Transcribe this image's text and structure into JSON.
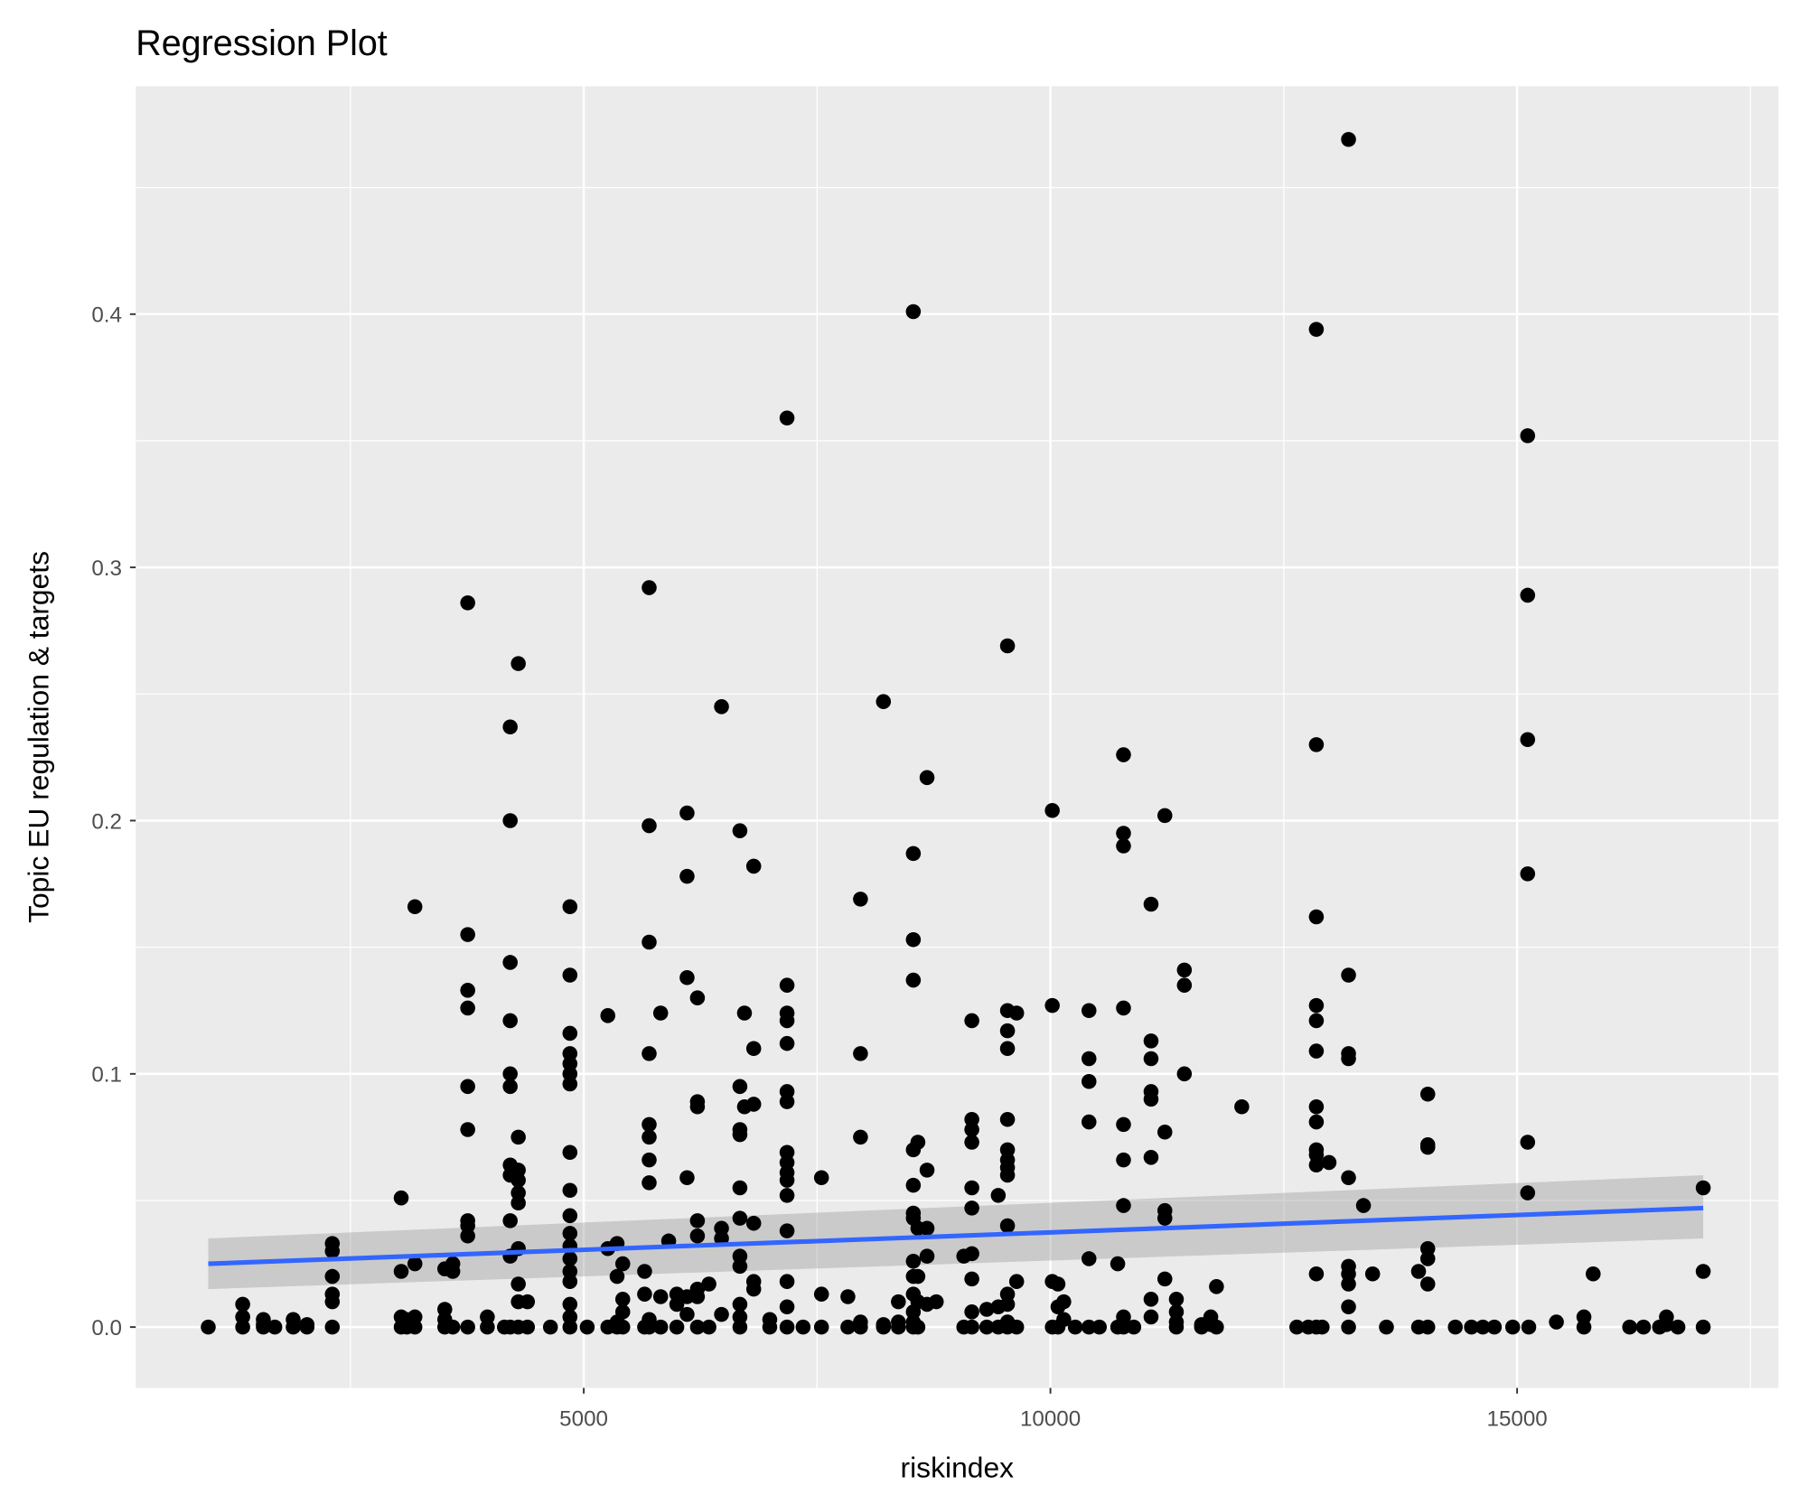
{
  "chart_data": {
    "type": "scatter",
    "title": "Regression Plot",
    "xlabel": "riskindex",
    "ylabel": "Topic EU regulation & targets",
    "xlim": [
      200,
      17800
    ],
    "ylim": [
      -0.024,
      0.49
    ],
    "x_ticks": [
      5000,
      10000,
      15000
    ],
    "x_tick_labels": [
      "5000",
      "10000",
      "15000"
    ],
    "y_ticks": [
      0.0,
      0.1,
      0.2,
      0.3,
      0.4
    ],
    "y_tick_labels": [
      "0.0",
      "0.1",
      "0.2",
      "0.3",
      "0.4"
    ],
    "grid": true,
    "colors": {
      "panel": "#ebebeb",
      "grid": "#ffffff",
      "points": "#000000",
      "line": "#3366ff",
      "band": "#bebebe"
    },
    "regression": {
      "x": [
        977,
        16994
      ],
      "y": [
        0.025,
        0.047
      ],
      "ci_low": [
        0.015,
        0.035
      ],
      "ci_high": [
        0.035,
        0.06
      ]
    },
    "point_columns": [
      [
        977,
        [
          0
        ]
      ],
      [
        1346,
        [
          0,
          0.004,
          0.009
        ]
      ],
      [
        1567,
        [
          0,
          0.003,
          0.001
        ]
      ],
      [
        1690,
        [
          0
        ]
      ],
      [
        1887,
        [
          0,
          0.003
        ]
      ],
      [
        2035,
        [
          0,
          0.001
        ]
      ],
      [
        2306,
        [
          0,
          0.01,
          0.013,
          0.02,
          0.03,
          0.033
        ]
      ],
      [
        3044,
        [
          0.051,
          0.022,
          0.004,
          0
        ]
      ],
      [
        3105,
        [
          0,
          0.003
        ]
      ],
      [
        3191,
        [
          0.166,
          0.025,
          0.004,
          0
        ]
      ],
      [
        3511,
        [
          0.023,
          0.007,
          0.003,
          0
        ]
      ],
      [
        3597,
        [
          0.022,
          0.025,
          0
        ]
      ],
      [
        3757,
        [
          0.286,
          0.155,
          0.133,
          0.126,
          0.095,
          0.078,
          0.042,
          0.04,
          0.036,
          0
        ]
      ],
      [
        3967,
        [
          0.004,
          0
        ]
      ],
      [
        4150,
        [
          0
        ]
      ],
      [
        4212,
        [
          0.237,
          0.2,
          0.144,
          0.121,
          0.1,
          0.095,
          0.064,
          0.06,
          0.042,
          0.028,
          0
        ]
      ],
      [
        4299,
        [
          0.262,
          0.075,
          0.062,
          0.058,
          0.053,
          0.049,
          0.031,
          0.017,
          0.01,
          0
        ]
      ],
      [
        4397,
        [
          0.01,
          0
        ]
      ],
      [
        4643,
        [
          0
        ]
      ],
      [
        4852,
        [
          0.166,
          0.139,
          0.116,
          0.108,
          0.104,
          0.1,
          0.096,
          0.069,
          0.054,
          0.044,
          0.037,
          0.032,
          0.027,
          0.022,
          0.018,
          0.009,
          0.004,
          0
        ]
      ],
      [
        5037,
        [
          0
        ]
      ],
      [
        5258,
        [
          0.123,
          0.031,
          0
        ]
      ],
      [
        5357,
        [
          0.033,
          0.02,
          0.002,
          0
        ]
      ],
      [
        5418,
        [
          0.025,
          0.011,
          0.006,
          0
        ]
      ],
      [
        5652,
        [
          0.022,
          0.013,
          0
        ]
      ],
      [
        5701,
        [
          0.292,
          0.198,
          0.152,
          0.108,
          0.08,
          0.075,
          0.066,
          0.057,
          0.003,
          0
        ]
      ],
      [
        5824,
        [
          0.124,
          0.012,
          0
        ]
      ],
      [
        5910,
        [
          0.034
        ]
      ],
      [
        5997,
        [
          0.013,
          0.009,
          0
        ]
      ],
      [
        6107,
        [
          0.203,
          0.178,
          0.138,
          0.059,
          0.012,
          0.005
        ]
      ],
      [
        6218,
        [
          0.13,
          0.089,
          0.087,
          0.042,
          0.036,
          0.015,
          0.012,
          0
        ]
      ],
      [
        6341,
        [
          0.017,
          0
        ]
      ],
      [
        6476,
        [
          0.245,
          0.039,
          0.035,
          0.005
        ]
      ],
      [
        6673,
        [
          0.196,
          0.095,
          0.078,
          0.076,
          0.055,
          0.043,
          0.028,
          0.024,
          0.009,
          0.004,
          0
        ]
      ],
      [
        6722,
        [
          0.124,
          0.087
        ]
      ],
      [
        6821,
        [
          0.182,
          0.11,
          0.088,
          0.041,
          0.018,
          0.015
        ]
      ],
      [
        6993,
        [
          0.003,
          0
        ]
      ],
      [
        7178,
        [
          0.359,
          0.135,
          0.124,
          0.121,
          0.112,
          0.093,
          0.089,
          0.069,
          0.065,
          0.061,
          0.058,
          0.052,
          0.038,
          0.018,
          0.008,
          0
        ]
      ],
      [
        7350,
        [
          0
        ]
      ],
      [
        7547,
        [
          0.059,
          0.013,
          0
        ]
      ],
      [
        7830,
        [
          0.012,
          0
        ]
      ],
      [
        7965,
        [
          0.169,
          0.108,
          0.075,
          0.002,
          0
        ]
      ],
      [
        8211,
        [
          0.247,
          0.001,
          0
        ]
      ],
      [
        8371,
        [
          0.01,
          0.002,
          0
        ]
      ],
      [
        8531,
        [
          0.401,
          0.187,
          0.153,
          0.137,
          0.07,
          0.056,
          0.045,
          0.043,
          0.026,
          0.02,
          0.013,
          0.006,
          0.002,
          0
        ]
      ],
      [
        8580,
        [
          0.073,
          0.039,
          0.02,
          0.01,
          0
        ]
      ],
      [
        8678,
        [
          0.217,
          0.062,
          0.039,
          0.028,
          0.009
        ]
      ],
      [
        8777,
        [
          0.01
        ]
      ],
      [
        9072,
        [
          0.028,
          0
        ]
      ],
      [
        9158,
        [
          0.121,
          0.082,
          0.078,
          0.073,
          0.055,
          0.047,
          0.029,
          0.019,
          0.006,
          0
        ]
      ],
      [
        9318,
        [
          0.007,
          0
        ]
      ],
      [
        9441,
        [
          0.052,
          0.008,
          0
        ]
      ],
      [
        9540,
        [
          0.269,
          0.125,
          0.117,
          0.11,
          0.082,
          0.07,
          0.066,
          0.063,
          0.06,
          0.04,
          0.013,
          0.009,
          0.002,
          0
        ]
      ],
      [
        9638,
        [
          0.124,
          0.018,
          0
        ]
      ],
      [
        10020,
        [
          0.204,
          0.127,
          0.018,
          0
        ]
      ],
      [
        10081,
        [
          0.017,
          0.008,
          0
        ]
      ],
      [
        10143,
        [
          0.01,
          0.003
        ]
      ],
      [
        10266,
        [
          0
        ]
      ],
      [
        10413,
        [
          0.125,
          0.106,
          0.097,
          0.081,
          0.027,
          0
        ]
      ],
      [
        10524,
        [
          0
        ]
      ],
      [
        10721,
        [
          0.025,
          0
        ]
      ],
      [
        10783,
        [
          0.226,
          0.195,
          0.19,
          0.126,
          0.08,
          0.066,
          0.048,
          0.004,
          0
        ]
      ],
      [
        10893,
        [
          0
        ]
      ],
      [
        11078,
        [
          0.167,
          0.113,
          0.106,
          0.093,
          0.09,
          0.067,
          0.011,
          0.004
        ]
      ],
      [
        11226,
        [
          0.202,
          0.077,
          0.046,
          0.043,
          0.019
        ]
      ],
      [
        11349,
        [
          0.011,
          0.006,
          0.002,
          0
        ]
      ],
      [
        11435,
        [
          0.141,
          0.135,
          0.1
        ]
      ],
      [
        11619,
        [
          0.001,
          0
        ]
      ],
      [
        11718,
        [
          0.004,
          0.001
        ]
      ],
      [
        11779,
        [
          0.016,
          0
        ]
      ],
      [
        12050,
        [
          0.087
        ]
      ],
      [
        12640,
        [
          0
        ]
      ],
      [
        12763,
        [
          0
        ]
      ],
      [
        12849,
        [
          0.394,
          0.23,
          0.162,
          0.127,
          0.121,
          0.109,
          0.087,
          0.081,
          0.07,
          0.068,
          0.064,
          0.021,
          0
        ]
      ],
      [
        12911,
        [
          0
        ]
      ],
      [
        12985,
        [
          0.065
        ]
      ],
      [
        13194,
        [
          0.469,
          0.139,
          0.108,
          0.106,
          0.059,
          0.024,
          0.021,
          0.017,
          0.008,
          0
        ]
      ],
      [
        13354,
        [
          0.048
        ]
      ],
      [
        13452,
        [
          0.021
        ]
      ],
      [
        13600,
        [
          0
        ]
      ],
      [
        13944,
        [
          0.022,
          0
        ]
      ],
      [
        14043,
        [
          0.092,
          0.072,
          0.071,
          0.031,
          0.027,
          0.017,
          0
        ]
      ],
      [
        14338,
        [
          0
        ]
      ],
      [
        14511,
        [
          0
        ]
      ],
      [
        14633,
        [
          0
        ]
      ],
      [
        14756,
        [
          0
        ]
      ],
      [
        14953,
        [
          0
        ]
      ],
      [
        15125,
        [
          0
        ]
      ],
      [
        15113,
        [
          0.352,
          0.289,
          0.232,
          0.179,
          0.073,
          0.053
        ]
      ],
      [
        15421,
        [
          0.002
        ]
      ],
      [
        15716,
        [
          0.004,
          0
        ]
      ],
      [
        15815,
        [
          0.021
        ]
      ],
      [
        16206,
        [
          0
        ]
      ],
      [
        16354,
        [
          0
        ]
      ],
      [
        16526,
        [
          0
        ]
      ],
      [
        16600,
        [
          0.004,
          0.001
        ]
      ],
      [
        16723,
        [
          0
        ]
      ],
      [
        16994,
        [
          0.055,
          0.022,
          0
        ]
      ]
    ]
  }
}
